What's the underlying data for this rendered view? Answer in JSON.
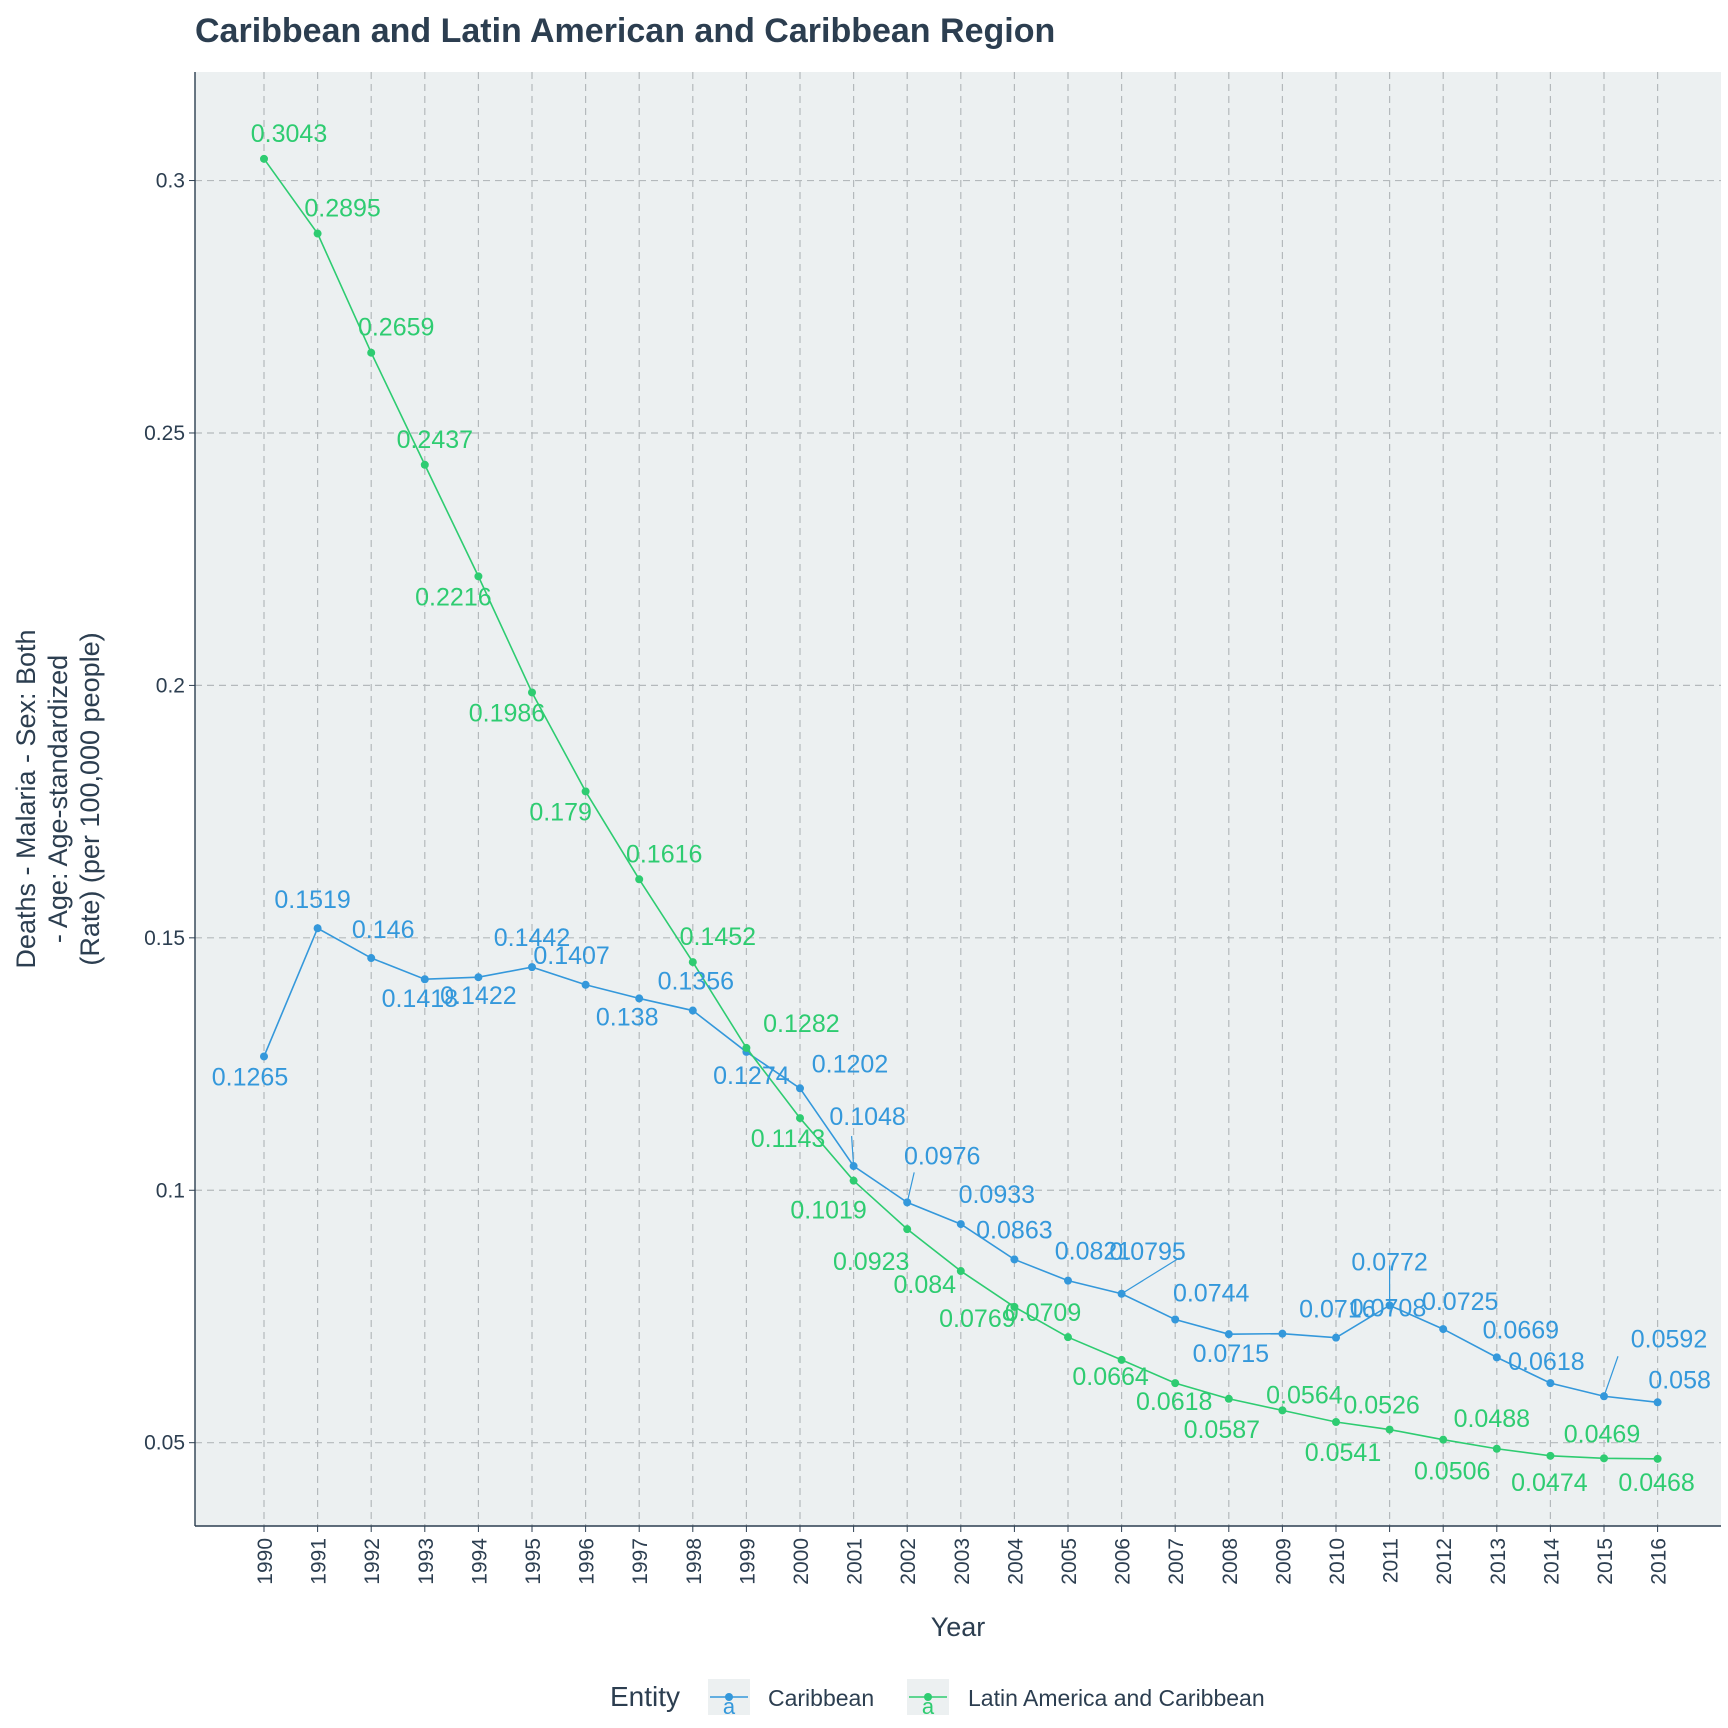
{
  "chart_data": {
    "type": "line",
    "title": "Caribbean and Latin American and Caribbean Region",
    "xlabel": "Year",
    "ylabel_lines": [
      "Deaths - Malaria - Sex: Both",
      "- Age: Age-standardized",
      "(Rate) (per 100,000 people)"
    ],
    "x": [
      1990,
      1991,
      1992,
      1993,
      1994,
      1995,
      1996,
      1997,
      1998,
      1999,
      2000,
      2001,
      2002,
      2003,
      2004,
      2005,
      2006,
      2007,
      2008,
      2009,
      2010,
      2011,
      2012,
      2013,
      2014,
      2015,
      2016
    ],
    "xticks": [
      "1990",
      "1991",
      "1992",
      "1993",
      "1994",
      "1995",
      "1996",
      "1997",
      "1998",
      "1999",
      "2000",
      "2001",
      "2002",
      "2003",
      "2004",
      "2005",
      "2006",
      "2007",
      "2008",
      "2009",
      "2010",
      "2011",
      "2012",
      "2013",
      "2014",
      "2015",
      "2016"
    ],
    "ylim": [
      0.0335,
      0.3215
    ],
    "yticks": [
      {
        "value": 0.05,
        "label": "0.05"
      },
      {
        "value": 0.1,
        "label": "0.1"
      },
      {
        "value": 0.15,
        "label": "0.15"
      },
      {
        "value": 0.2,
        "label": "0.2"
      },
      {
        "value": 0.25,
        "label": "0.25"
      },
      {
        "value": 0.3,
        "label": "0.3"
      }
    ],
    "grid": true,
    "legend": {
      "title": "Entity",
      "position": "bottom"
    },
    "series": [
      {
        "name": "Caribbean",
        "color": "#3498db",
        "values": [
          0.1265,
          0.1519,
          0.146,
          0.1418,
          0.1422,
          0.1442,
          0.1407,
          0.138,
          0.1356,
          0.1274,
          0.1202,
          0.1048,
          0.0976,
          0.0933,
          0.0863,
          0.0821,
          0.0795,
          0.0744,
          0.0715,
          0.0716,
          0.0708,
          0.0772,
          0.0725,
          0.0669,
          0.0618,
          0.0592,
          0.058
        ],
        "labels": [
          "0.1265",
          "0.1519",
          "0.146",
          "0.1418",
          "0.1422",
          "0.1442",
          "0.1407",
          "0.138",
          "0.1356",
          "0.1274",
          "0.1202",
          "0.1048",
          "0.0976",
          "0.0933",
          "0.0863",
          "0.0821",
          "0.0795",
          "0.0744",
          "0.0715",
          "0.0716",
          "0.0708",
          "0.0772",
          "0.0725",
          "0.0669",
          "0.0618",
          "0.0592",
          "0.058"
        ]
      },
      {
        "name": "Latin America and Caribbean",
        "color": "#2ecc71",
        "values": [
          0.3043,
          0.2895,
          0.2659,
          0.2437,
          0.2216,
          0.1986,
          0.179,
          0.1616,
          0.1452,
          0.1282,
          0.1143,
          0.1019,
          0.0923,
          0.084,
          0.0769,
          0.0709,
          0.0664,
          0.0618,
          0.0587,
          0.0564,
          0.0541,
          0.0526,
          0.0506,
          0.0488,
          0.0474,
          0.0469,
          0.0468
        ],
        "labels": [
          "0.3043",
          "0.2895",
          "0.2659",
          "0.2437",
          "0.2216",
          "0.1986",
          "0.179",
          "0.1616",
          "0.1452",
          "0.1282",
          "0.1143",
          "0.1019",
          "0.0923",
          "0.084",
          "0.0769",
          "0.0709",
          "0.0664",
          "0.0618",
          "0.0587",
          "0.0564",
          "0.0541",
          "0.0526",
          "0.0506",
          "0.0488",
          "0.0474",
          "0.0469",
          "0.0468"
        ]
      }
    ]
  }
}
